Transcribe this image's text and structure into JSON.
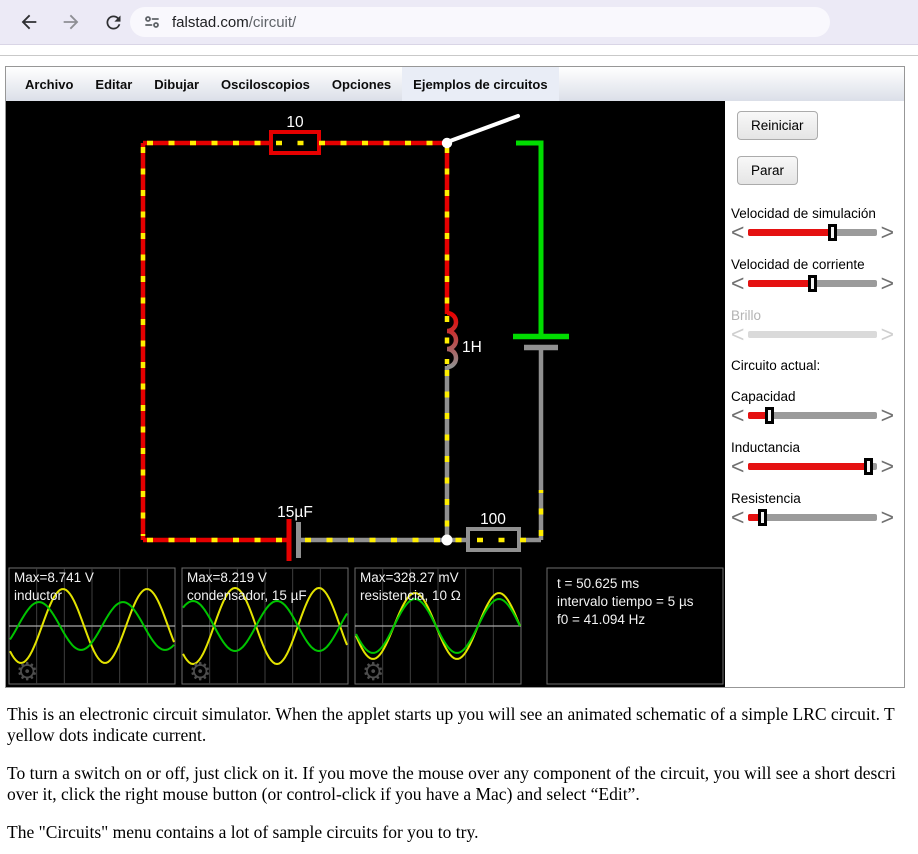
{
  "browser": {
    "url_host": "falstad.com",
    "url_path": "/circuit/"
  },
  "menu": {
    "items": [
      "Archivo",
      "Editar",
      "Dibujar",
      "Osciloscopios",
      "Opciones",
      "Ejemplos de circuitos"
    ],
    "highlighted_index": 5
  },
  "circuit": {
    "resistor_top_label": "10",
    "inductor_label": "1H",
    "capacitor_label": "15µF",
    "resistor_bottom_label": "100"
  },
  "colors": {
    "wire_positive": "#e60000",
    "wire_ground": "#909090",
    "wire_high": "#00dd00",
    "current_dot": "#ffee00"
  },
  "sidebar": {
    "reset_button": "Reiniciar",
    "stop_button": "Parar",
    "current_circuit_heading": "Circuito actual:",
    "sliders": [
      {
        "label": "Velocidad de simulación",
        "value_pct": 66,
        "enabled": true
      },
      {
        "label": "Velocidad de corriente",
        "value_pct": 50,
        "enabled": true
      },
      {
        "label": "Brillo",
        "value_pct": 0,
        "enabled": false
      },
      {
        "label": "Capacidad",
        "value_pct": 17,
        "enabled": true
      },
      {
        "label": "Inductancia",
        "value_pct": 94,
        "enabled": true
      },
      {
        "label": "Resistencia",
        "value_pct": 11,
        "enabled": true
      }
    ]
  },
  "scopes": [
    {
      "max_label": "Max=8.741 V",
      "name": "inductor",
      "waves": [
        {
          "color": "#e3e300",
          "amp": 37,
          "period": 84,
          "phase": 33
        },
        {
          "color": "#00c400",
          "amp": 24,
          "period": 84,
          "phase": 9
        }
      ]
    },
    {
      "max_label": "Max=8.219 V",
      "name": "condensador, 15 µF",
      "waves": [
        {
          "color": "#e3e300",
          "amp": 38,
          "period": 84,
          "phase": 32
        },
        {
          "color": "#00c400",
          "amp": 25,
          "period": 84,
          "phase": 74
        }
      ]
    },
    {
      "max_label": "Max=328.27 mV",
      "name": "resistencia, 10 Ω",
      "waves": [
        {
          "color": "#e3e300",
          "amp": 33,
          "period": 84,
          "phase": 39
        },
        {
          "color": "#00c400",
          "amp": 27,
          "period": 84,
          "phase": 39
        }
      ]
    }
  ],
  "scope_info": {
    "time": "t = 50.625 ms",
    "interval": "intervalo tiempo = 5 µs",
    "f0": "f0 = 41.094 Hz"
  },
  "icons": {
    "gear": "⚙",
    "slider_left": "<",
    "slider_right": ">"
  },
  "page_text": {
    "p1_line1": "This is an electronic circuit simulator.  When the applet starts up you will see an animated schematic of a simple LRC circuit. T",
    "p1_line2": "yellow dots indicate current.",
    "p2_line1": "To turn a switch on or off, just click on it.  If you move the mouse over any component of the circuit, you will see a short descri",
    "p2_line2": "over it, click the right mouse button (or control-click if you have a Mac) and select “Edit”.",
    "p3_line1": "The \"Circuits\" menu contains a lot of sample circuits for you to try."
  }
}
